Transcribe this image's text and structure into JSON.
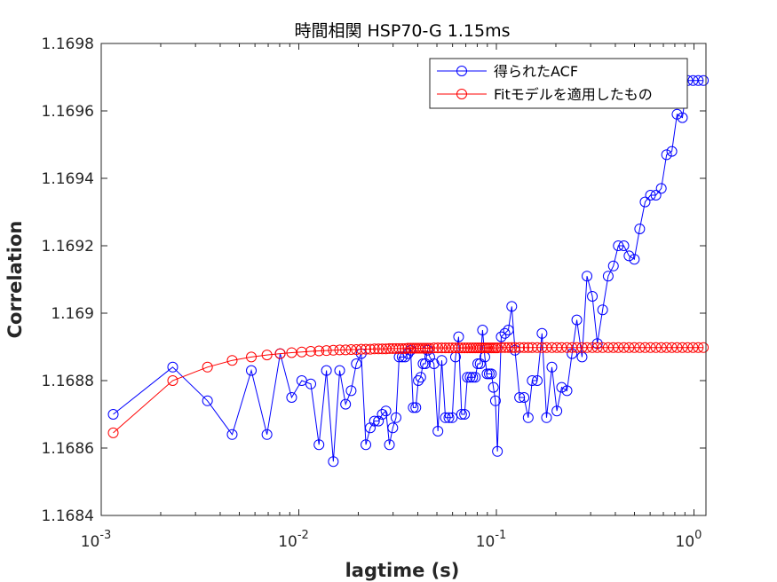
{
  "chart_data": {
    "type": "line",
    "title": "時間相関 HSP70-G 1.15ms",
    "xlabel": "lagtime (s)",
    "ylabel": "Correlation",
    "xscale": "log",
    "xlim": [
      0.001,
      1.15
    ],
    "ylim": [
      1.1684,
      1.1698
    ],
    "xticks": [
      {
        "value": 0.001,
        "base": "10",
        "exp": "-3"
      },
      {
        "value": 0.01,
        "base": "10",
        "exp": "-2"
      },
      {
        "value": 0.1,
        "base": "10",
        "exp": "-1"
      },
      {
        "value": 1,
        "base": "10",
        "exp": "0"
      }
    ],
    "yticks": [
      {
        "value": 1.1684,
        "label": "1.1684"
      },
      {
        "value": 1.1686,
        "label": "1.1686"
      },
      {
        "value": 1.1688,
        "label": "1.1688"
      },
      {
        "value": 1.169,
        "label": "1.169"
      },
      {
        "value": 1.1692,
        "label": "1.1692"
      },
      {
        "value": 1.1694,
        "label": "1.1694"
      },
      {
        "value": 1.1696,
        "label": "1.1696"
      },
      {
        "value": 1.1698,
        "label": "1.1698"
      }
    ],
    "grid": false,
    "legend_position": "top-right",
    "series": [
      {
        "name": "得られたACF",
        "color": "#0000ff",
        "marker": "circle",
        "x": [
          0.00115,
          0.0023,
          0.00345,
          0.0046,
          0.00575,
          0.0069,
          0.00805,
          0.0092,
          0.01035,
          0.0115,
          0.01265,
          0.0138,
          0.01495,
          0.0161,
          0.01725,
          0.0184,
          0.01955,
          0.0207,
          0.02185,
          0.023,
          0.02415,
          0.0253,
          0.02645,
          0.0276,
          0.02875,
          0.0299,
          0.03105,
          0.0322,
          0.03335,
          0.0345,
          0.03565,
          0.0368,
          0.03795,
          0.0391,
          0.04025,
          0.0414,
          0.04255,
          0.0437,
          0.04485,
          0.046,
          0.0483,
          0.0506,
          0.0529,
          0.0552,
          0.0575,
          0.0598,
          0.0621,
          0.0644,
          0.0667,
          0.069,
          0.0713,
          0.0736,
          0.0759,
          0.0782,
          0.0805,
          0.0828,
          0.0851,
          0.0874,
          0.0897,
          0.092,
          0.0943,
          0.0966,
          0.0989,
          0.1012,
          0.1058,
          0.1104,
          0.115,
          0.1196,
          0.1242,
          0.1311,
          0.138,
          0.1449,
          0.1518,
          0.161,
          0.1702,
          0.1794,
          0.1909,
          0.2024,
          0.2139,
          0.2277,
          0.2415,
          0.2553,
          0.2714,
          0.2875,
          0.3059,
          0.3243,
          0.345,
          0.368,
          0.391,
          0.414,
          0.4416,
          0.4692,
          0.4991,
          0.5313,
          0.5658,
          0.6026,
          0.6417,
          0.6831,
          0.7268,
          0.7728,
          0.8211,
          0.874,
          0.9292,
          0.989,
          1.0511,
          1.1155
        ],
        "y": [
          1.1687,
          1.16884,
          1.16874,
          1.16864,
          1.16883,
          1.16864,
          1.16888,
          1.16875,
          1.1688,
          1.16879,
          1.16861,
          1.16883,
          1.16856,
          1.16883,
          1.16873,
          1.16877,
          1.16885,
          1.16888,
          1.16861,
          1.16866,
          1.16868,
          1.16868,
          1.1687,
          1.16871,
          1.16861,
          1.16866,
          1.16869,
          1.16887,
          1.16887,
          1.16887,
          1.16888,
          1.16889,
          1.16872,
          1.16872,
          1.1688,
          1.16881,
          1.16885,
          1.16885,
          1.16889,
          1.16887,
          1.16885,
          1.16865,
          1.16886,
          1.16869,
          1.16869,
          1.16869,
          1.16887,
          1.16893,
          1.1687,
          1.1687,
          1.16881,
          1.16881,
          1.16881,
          1.16881,
          1.16885,
          1.16885,
          1.16895,
          1.16887,
          1.16882,
          1.16882,
          1.16882,
          1.16878,
          1.16874,
          1.16859,
          1.16893,
          1.16894,
          1.16895,
          1.16902,
          1.16889,
          1.16875,
          1.16875,
          1.16869,
          1.1688,
          1.1688,
          1.16894,
          1.16869,
          1.16884,
          1.16871,
          1.16878,
          1.16877,
          1.16888,
          1.16898,
          1.16887,
          1.16911,
          1.16905,
          1.16891,
          1.16901,
          1.16911,
          1.16914,
          1.1692,
          1.1692,
          1.16917,
          1.16916,
          1.16925,
          1.16933,
          1.16935,
          1.16935,
          1.16937,
          1.16947,
          1.16948,
          1.16959,
          1.16958,
          1.16969,
          1.16969,
          1.16969,
          1.16969
        ]
      },
      {
        "name": "Fitモデルを適用したもの",
        "color": "#ff0000",
        "marker": "circle",
        "x": [
          0.00115,
          0.0023,
          0.00345,
          0.0046,
          0.00575,
          0.0069,
          0.00805,
          0.0092,
          0.01035,
          0.0115,
          0.01265,
          0.0138,
          0.01495,
          0.0161,
          0.01725,
          0.0184,
          0.01955,
          0.0207,
          0.02185,
          0.023,
          0.02415,
          0.0253,
          0.02645,
          0.0276,
          0.02875,
          0.0299,
          0.03105,
          0.0322,
          0.03335,
          0.0345,
          0.03565,
          0.0368,
          0.03795,
          0.0391,
          0.04025,
          0.0414,
          0.04255,
          0.0437,
          0.04485,
          0.046,
          0.0483,
          0.0506,
          0.0529,
          0.0552,
          0.0575,
          0.0598,
          0.0621,
          0.0644,
          0.0667,
          0.069,
          0.0713,
          0.0736,
          0.0759,
          0.0782,
          0.0805,
          0.0828,
          0.0851,
          0.0874,
          0.0897,
          0.092,
          0.0943,
          0.0966,
          0.0989,
          0.1012,
          0.1058,
          0.1104,
          0.115,
          0.1196,
          0.1242,
          0.1311,
          0.138,
          0.1449,
          0.1518,
          0.161,
          0.1702,
          0.1794,
          0.1909,
          0.2024,
          0.2139,
          0.2277,
          0.2415,
          0.2553,
          0.2714,
          0.2875,
          0.3059,
          0.3243,
          0.345,
          0.368,
          0.391,
          0.414,
          0.4416,
          0.4692,
          0.4991,
          0.5313,
          0.5658,
          0.6026,
          0.6417,
          0.6831,
          0.7268,
          0.7728,
          0.8211,
          0.874,
          0.9292,
          0.989,
          1.0511,
          1.1155
        ],
        "y": [
          1.168645,
          1.1688,
          1.16884,
          1.16886,
          1.16887,
          1.168876,
          1.16888,
          1.168883,
          1.168885,
          1.168887,
          1.168888,
          1.168889,
          1.16889,
          1.168891,
          1.168891,
          1.168892,
          1.168892,
          1.168893,
          1.168893,
          1.168893,
          1.168894,
          1.168894,
          1.168894,
          1.168894,
          1.168895,
          1.168895,
          1.168895,
          1.168895,
          1.168895,
          1.168895,
          1.168896,
          1.168896,
          1.168896,
          1.168896,
          1.168896,
          1.168896,
          1.168896,
          1.168896,
          1.168896,
          1.168896,
          1.168897,
          1.168897,
          1.168897,
          1.168897,
          1.168897,
          1.168897,
          1.168897,
          1.168897,
          1.168897,
          1.168897,
          1.168897,
          1.168897,
          1.168897,
          1.168897,
          1.168897,
          1.168897,
          1.168897,
          1.168897,
          1.168897,
          1.168897,
          1.168897,
          1.168897,
          1.168897,
          1.168897,
          1.168898,
          1.168898,
          1.168898,
          1.168898,
          1.168898,
          1.168898,
          1.168898,
          1.168898,
          1.168898,
          1.168898,
          1.168898,
          1.168898,
          1.168898,
          1.168898,
          1.168898,
          1.168898,
          1.168898,
          1.168898,
          1.168898,
          1.168898,
          1.168898,
          1.168898,
          1.168898,
          1.168898,
          1.168898,
          1.168898,
          1.168898,
          1.168898,
          1.168898,
          1.168898,
          1.168898,
          1.168898,
          1.168898,
          1.168898,
          1.168898,
          1.168898,
          1.168898,
          1.168898,
          1.168898,
          1.168898,
          1.168898,
          1.168898
        ]
      }
    ]
  }
}
